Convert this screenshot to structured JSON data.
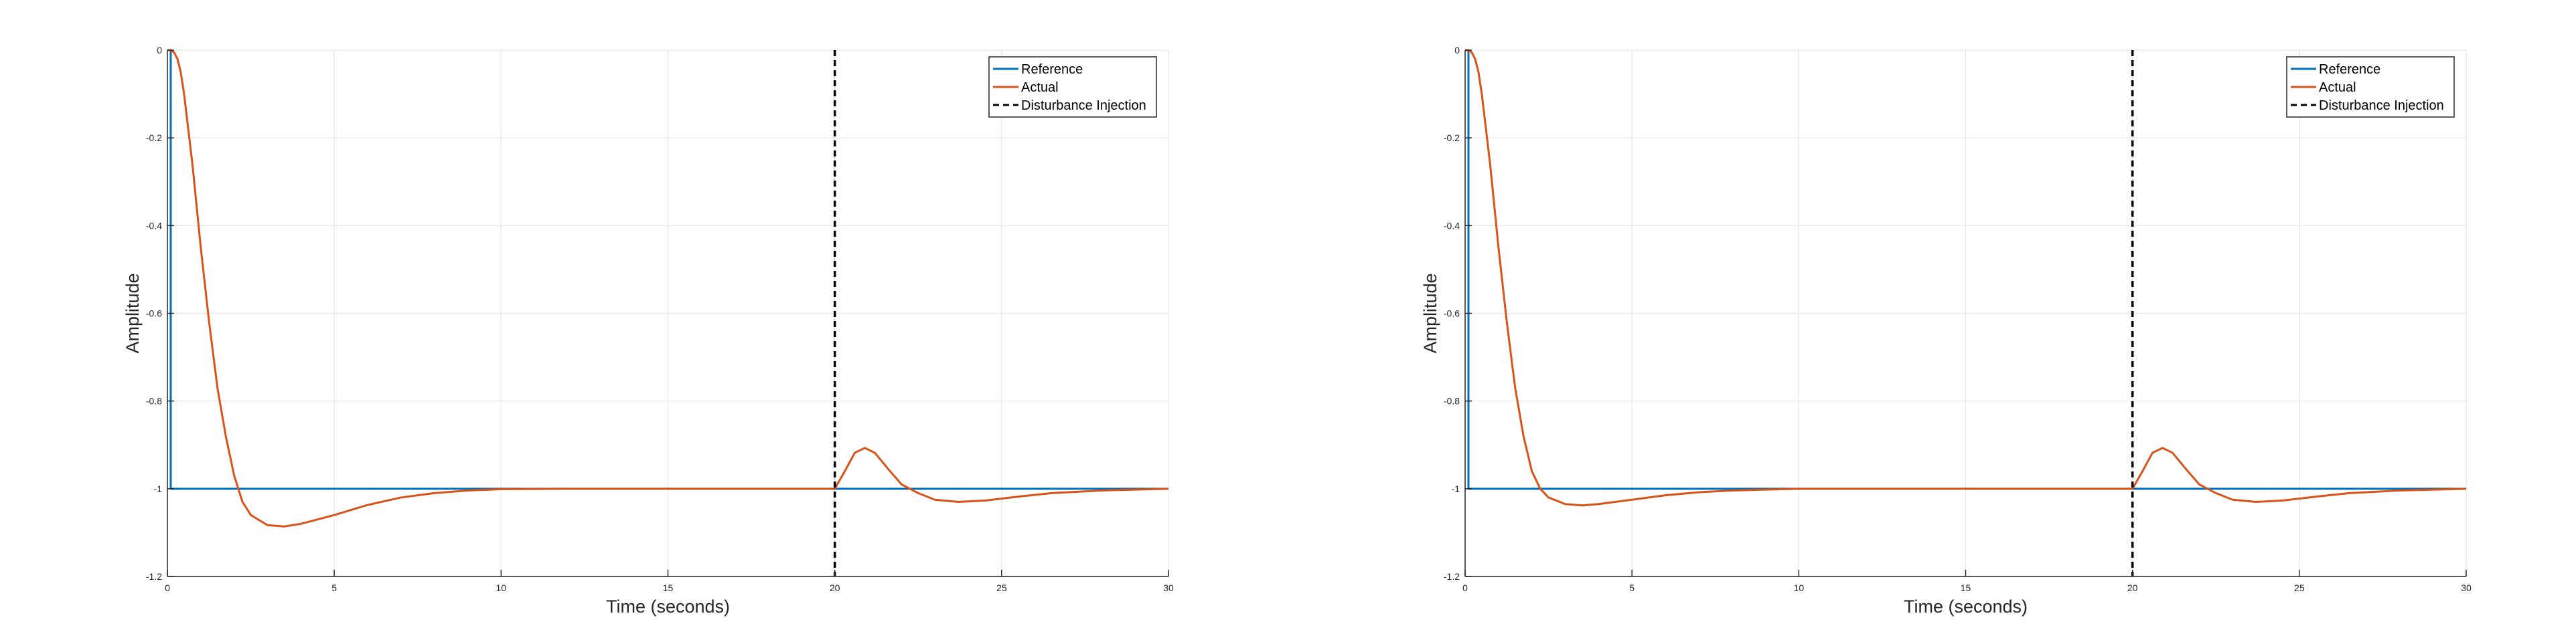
{
  "colors": {
    "reference": "#0072BD",
    "actual": "#D95319",
    "disturbance": "#000000",
    "grid": "#e6e6e6",
    "axes": "#262626"
  },
  "chart_data": [
    {
      "type": "line",
      "title": "",
      "xlabel": "Time (seconds)",
      "ylabel": "Amplitude",
      "xlim": [
        0,
        30
      ],
      "ylim": [
        -1.2,
        0
      ],
      "xticks": [
        0,
        5,
        10,
        15,
        20,
        25,
        30
      ],
      "xtick_labels": [
        "0",
        "5",
        "10",
        "15",
        "20",
        "25",
        "30"
      ],
      "yticks": [
        0,
        -0.2,
        -0.4,
        -0.6,
        -0.8,
        -1,
        -1.2
      ],
      "ytick_labels": [
        "0",
        "-0.2",
        "-0.4",
        "-0.6",
        "-0.8",
        "-1",
        "-1.2"
      ],
      "grid": true,
      "legend_position": "top-right",
      "series": [
        {
          "name": "Reference",
          "style": "solid",
          "x": [
            0,
            0.1,
            0.1,
            30
          ],
          "y": [
            0,
            0,
            -1,
            -1
          ]
        },
        {
          "name": "Actual",
          "style": "solid",
          "x": [
            0,
            0.1,
            0.2,
            0.3,
            0.4,
            0.5,
            0.75,
            1,
            1.25,
            1.5,
            1.75,
            2,
            2.25,
            2.5,
            3,
            3.5,
            4,
            5,
            6,
            7,
            8,
            9,
            10,
            12,
            15,
            18,
            20,
            20.3,
            20.6,
            20.9,
            21.2,
            21.6,
            22,
            22.5,
            23,
            23.7,
            24.5,
            25.5,
            26.5,
            28,
            30
          ],
          "y": [
            0,
            0,
            -0.005,
            -0.02,
            -0.05,
            -0.1,
            -0.26,
            -0.45,
            -0.62,
            -0.77,
            -0.88,
            -0.97,
            -1.03,
            -1.06,
            -1.083,
            -1.086,
            -1.08,
            -1.06,
            -1.037,
            -1.02,
            -1.01,
            -1.004,
            -1.001,
            -1.0,
            -1.0,
            -1.0,
            -1.0,
            -0.96,
            -0.918,
            -0.907,
            -0.918,
            -0.955,
            -0.99,
            -1.01,
            -1.025,
            -1.03,
            -1.027,
            -1.018,
            -1.01,
            -1.004,
            -1.0
          ]
        },
        {
          "name": "Disturbance Injection",
          "style": "dashed",
          "x": [
            20,
            20
          ],
          "y": [
            0,
            -1.2
          ]
        }
      ]
    },
    {
      "type": "line",
      "title": "",
      "xlabel": "Time (seconds)",
      "ylabel": "Amplitude",
      "xlim": [
        0,
        30
      ],
      "ylim": [
        -1.2,
        0
      ],
      "xticks": [
        0,
        5,
        10,
        15,
        20,
        25,
        30
      ],
      "xtick_labels": [
        "0",
        "5",
        "10",
        "15",
        "20",
        "25",
        "30"
      ],
      "yticks": [
        0,
        -0.2,
        -0.4,
        -0.6,
        -0.8,
        -1,
        -1.2
      ],
      "ytick_labels": [
        "0",
        "-0.2",
        "-0.4",
        "-0.6",
        "-0.8",
        "-1",
        "-1.2"
      ],
      "grid": true,
      "legend_position": "top-right",
      "series": [
        {
          "name": "Reference",
          "style": "solid",
          "x": [
            0,
            0.1,
            0.1,
            30
          ],
          "y": [
            0,
            0,
            -1,
            -1
          ]
        },
        {
          "name": "Actual",
          "style": "solid",
          "x": [
            0,
            0.1,
            0.2,
            0.3,
            0.4,
            0.5,
            0.75,
            1,
            1.25,
            1.5,
            1.75,
            2,
            2.25,
            2.5,
            3,
            3.5,
            4,
            5,
            6,
            7,
            8,
            9,
            10,
            12,
            15,
            18,
            20,
            20.3,
            20.6,
            20.9,
            21.2,
            21.6,
            22,
            22.5,
            23,
            23.7,
            24.5,
            25.5,
            26.5,
            28,
            30
          ],
          "y": [
            0,
            0,
            -0.005,
            -0.02,
            -0.05,
            -0.1,
            -0.26,
            -0.45,
            -0.62,
            -0.77,
            -0.88,
            -0.96,
            -1.0,
            -1.02,
            -1.035,
            -1.038,
            -1.035,
            -1.025,
            -1.015,
            -1.008,
            -1.004,
            -1.002,
            -1.0,
            -1.0,
            -1.0,
            -1.0,
            -1.0,
            -0.96,
            -0.918,
            -0.907,
            -0.918,
            -0.955,
            -0.99,
            -1.01,
            -1.025,
            -1.03,
            -1.027,
            -1.018,
            -1.01,
            -1.004,
            -1.0
          ]
        },
        {
          "name": "Disturbance Injection",
          "style": "dashed",
          "x": [
            20,
            20
          ],
          "y": [
            0,
            -1.2
          ]
        }
      ]
    }
  ]
}
